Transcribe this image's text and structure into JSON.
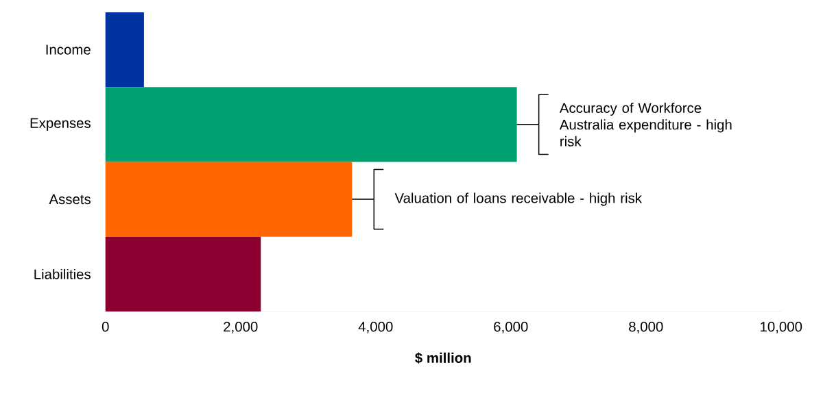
{
  "chart_data": {
    "type": "bar",
    "orientation": "horizontal",
    "xlabel": "**$ million**",
    "categories": [
      "Income",
      "Expenses",
      "Assets",
      "Liabilities"
    ],
    "values": [
      570,
      6090,
      3650,
      2300
    ],
    "colors": [
      "#0033a0",
      "#00a070",
      "#ff6600",
      "#8b0030"
    ],
    "xlim": [
      0,
      10000
    ],
    "xticks": [
      0,
      {
        "value": 2000,
        "label": "2,000"
      },
      {
        "value": 4000,
        "label": "4,000"
      },
      {
        "value": 6000,
        "label": "6,000"
      },
      {
        "value": 8000,
        "label": "8,000"
      },
      {
        "value": 10000,
        "label": "10,000"
      }
    ],
    "annotations": [
      "Accuracy of Workforce Australia expenditure - high risk",
      "Valuation of loans receivable - high risk"
    ],
    "grid": false,
    "legend": false
  }
}
